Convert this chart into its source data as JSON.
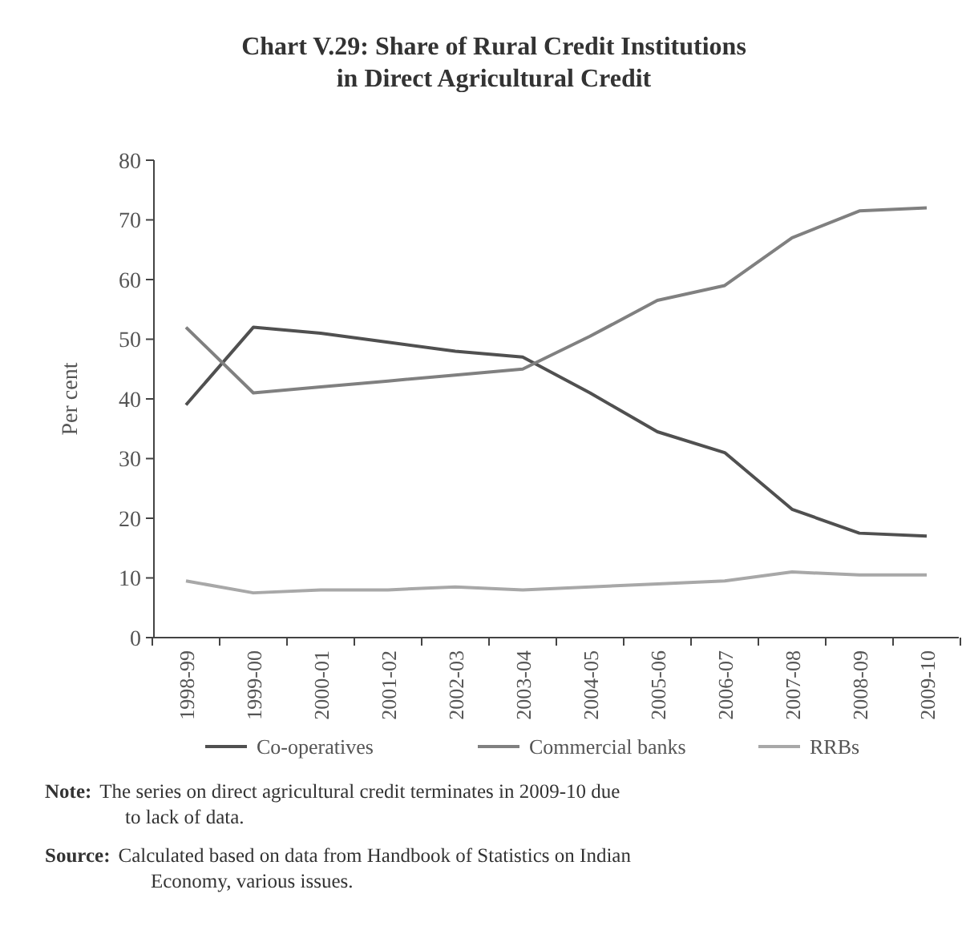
{
  "chart_data": {
    "type": "line",
    "title": "Chart V.29: Share of Rural Credit Institutions in Direct Agricultural Credit",
    "ylabel": "Per cent",
    "categories": [
      "1998-99",
      "1999-00",
      "2000-01",
      "2001-02",
      "2002-03",
      "2003-04",
      "2004-05",
      "2005-06",
      "2006-07",
      "2007-08",
      "2008-09",
      "2009-10"
    ],
    "series": [
      {
        "name": "Co-operatives",
        "color": "#505050",
        "values": [
          39,
          52,
          51,
          49.5,
          48,
          47,
          41,
          34.5,
          31,
          21.5,
          17.5,
          17
        ]
      },
      {
        "name": "Commercial banks",
        "color": "#808080",
        "values": [
          52,
          41,
          42,
          43,
          44,
          45,
          50.5,
          56.5,
          59,
          67,
          71.5,
          72
        ]
      },
      {
        "name": "RRBs",
        "color": "#a8a8a8",
        "values": [
          9.5,
          7.5,
          8,
          8,
          8.5,
          8,
          8.5,
          9,
          9.5,
          11,
          10.5,
          10.5
        ]
      }
    ],
    "ylim": [
      0,
      80
    ],
    "yticks": [
      0,
      10,
      20,
      30,
      40,
      50,
      60,
      70,
      80
    ],
    "grid": false,
    "legend": "bottom",
    "marker": "none",
    "line_style": "solid",
    "annotations": [
      "Note: The series on direct agricultural credit terminates in 2009-10 due to lack of data.",
      "Source: Calculated based on data from Handbook of Statistics on Indian Economy, various issues."
    ]
  }
}
